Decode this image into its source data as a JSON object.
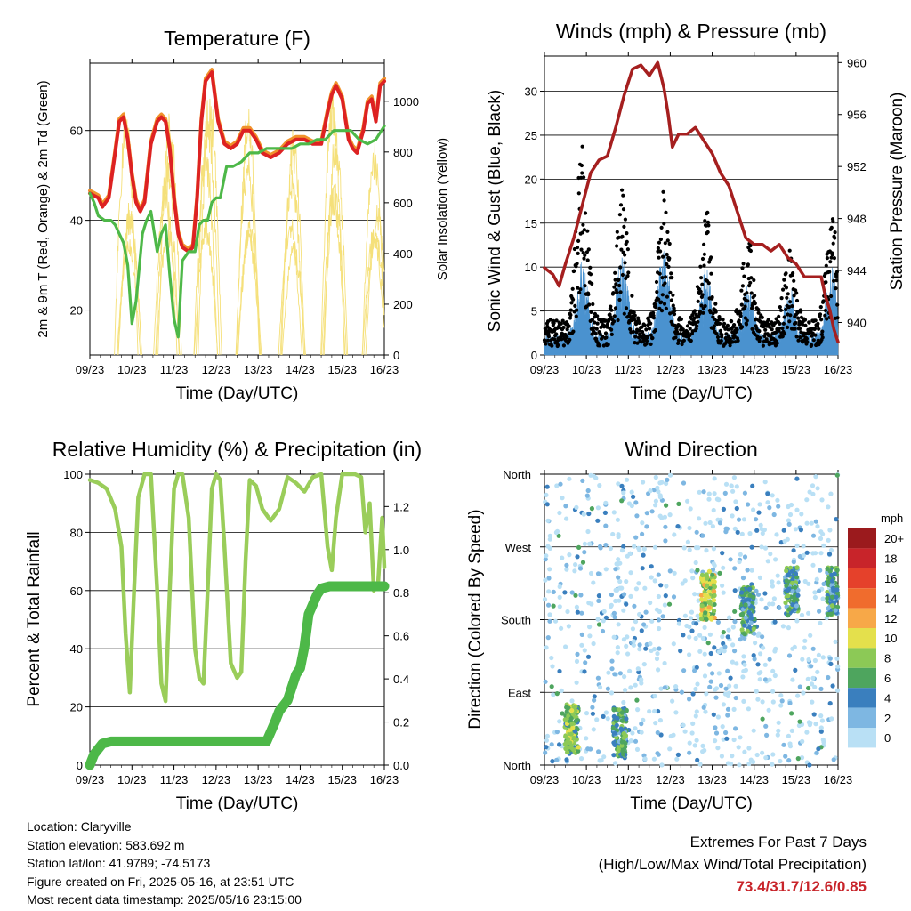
{
  "chart_data": [
    {
      "type": "line",
      "title": "Temperature (F)",
      "xlabel": "Time (Day/UTC)",
      "ylabel": "2m & 9m T (Red, Orange) & 2m Td (Green)",
      "ylabel_right": "Solar Insolation (Yellow)",
      "x_ticks": [
        "09/23",
        "10/23",
        "11/23",
        "12/23",
        "13/23",
        "14/23",
        "15/23",
        "16/23"
      ],
      "ylim": [
        10,
        75
      ],
      "y_ticks": [
        20,
        40,
        60
      ],
      "y2lim": [
        0,
        1150
      ],
      "y2_ticks": [
        0,
        200,
        400,
        600,
        800,
        1000
      ],
      "grid": true,
      "colors": {
        "temp_2m": "#dd2222",
        "temp_9m": "#f0922b",
        "dewpoint": "#4db848",
        "solar": "#f5e07a"
      },
      "series": [
        {
          "role": "temp_2m",
          "x_days": [
            0,
            0.1,
            0.2,
            0.3,
            0.45,
            0.6,
            0.7,
            0.8,
            0.9,
            1.0,
            1.1,
            1.2,
            1.3,
            1.45,
            1.6,
            1.7,
            1.8,
            1.9,
            2.0,
            2.1,
            2.2,
            2.35,
            2.45,
            2.55,
            2.65,
            2.75,
            2.9,
            3.05,
            3.2,
            3.35,
            3.5,
            3.65,
            3.8,
            3.95,
            4.1,
            4.3,
            4.5,
            4.7,
            4.9,
            5.1,
            5.3,
            5.5,
            5.65,
            5.75,
            5.85,
            6.0,
            6.15,
            6.25,
            6.35,
            6.5,
            6.6,
            6.7,
            6.8,
            6.9,
            7.0
          ],
          "values": [
            46,
            45.5,
            45,
            43,
            45,
            55,
            62,
            63,
            58,
            50,
            44,
            42,
            44,
            57,
            62,
            63,
            62,
            56,
            45,
            37,
            34,
            33,
            34,
            45,
            62,
            71,
            73,
            62,
            57,
            56,
            57,
            60,
            60,
            58,
            55,
            54,
            55,
            57,
            58,
            58,
            57,
            57,
            64,
            68,
            70,
            67,
            58,
            56,
            55,
            60,
            66,
            67,
            62,
            70,
            71
          ]
        },
        {
          "role": "dewpoint",
          "x_days": [
            0,
            0.1,
            0.2,
            0.35,
            0.5,
            0.6,
            0.8,
            0.9,
            1.0,
            1.1,
            1.25,
            1.35,
            1.45,
            1.6,
            1.7,
            1.8,
            1.9,
            2.0,
            2.1,
            2.2,
            2.35,
            2.5,
            2.6,
            2.7,
            2.8,
            2.9,
            3.0,
            3.1,
            3.25,
            3.4,
            3.6,
            3.8,
            4.0,
            4.2,
            4.4,
            4.6,
            4.8,
            5.0,
            5.2,
            5.4,
            5.6,
            5.8,
            6.0,
            6.2,
            6.4,
            6.6,
            6.8,
            7.0
          ],
          "values": [
            46,
            44,
            41,
            40,
            40,
            39,
            35,
            30,
            17,
            22,
            37,
            40,
            42,
            33,
            37,
            39,
            28,
            18,
            14,
            31,
            33,
            33,
            39,
            40,
            40,
            44,
            45,
            45,
            52,
            52,
            53,
            55,
            55,
            56,
            56,
            56,
            56,
            57,
            57,
            58,
            58,
            60,
            60,
            60,
            58,
            57,
            58,
            61
          ]
        },
        {
          "role": "solar_peaks",
          "x_days": [
            0.9,
            1.85,
            2.8,
            3.8,
            4.8,
            5.8,
            6.8
          ],
          "values": [
            1050,
            1080,
            1100,
            1000,
            1000,
            1100,
            1000
          ]
        }
      ]
    },
    {
      "type": "scatter",
      "title": "Winds (mph) & Pressure (mb)",
      "xlabel": "Time (Day/UTC)",
      "ylabel": "Sonic Wind & Gust (Blue, Black)",
      "ylabel_right": "Station Pressure (Maroon)",
      "x_ticks": [
        "09/23",
        "10/23",
        "11/23",
        "12/23",
        "13/23",
        "14/23",
        "15/23",
        "16/23"
      ],
      "ylim": [
        0,
        34
      ],
      "y_ticks": [
        0,
        5,
        10,
        15,
        20,
        25,
        30
      ],
      "y2lim": [
        937.5,
        960.5
      ],
      "y2_ticks": [
        940,
        944,
        948,
        952,
        956,
        960
      ],
      "grid": true,
      "colors": {
        "wind": "#4a92cf",
        "gust": "#000000",
        "pressure": "#a51f1f"
      },
      "series": [
        {
          "role": "pressure",
          "x_days": [
            0,
            0.2,
            0.35,
            0.5,
            0.7,
            0.9,
            1.1,
            1.3,
            1.5,
            1.7,
            1.9,
            2.1,
            2.3,
            2.5,
            2.7,
            2.85,
            2.95,
            3.05,
            3.2,
            3.4,
            3.6,
            3.8,
            4.0,
            4.2,
            4.4,
            4.6,
            4.8,
            5.0,
            5.2,
            5.4,
            5.6,
            5.8,
            6.0,
            6.2,
            6.35,
            6.5,
            6.6,
            6.7,
            6.8,
            6.9,
            7.0
          ],
          "values": [
            944.2,
            943.7,
            942.8,
            944.5,
            946.5,
            949,
            951.5,
            952.5,
            952.8,
            955,
            957.5,
            959.5,
            959.8,
            959,
            960,
            958,
            956,
            953.5,
            954.5,
            954.5,
            955,
            954,
            953,
            951.5,
            950.5,
            948.5,
            946.5,
            946,
            946,
            945.5,
            946,
            945,
            944.5,
            943.5,
            943.5,
            943.5,
            943.5,
            942,
            941,
            939.5,
            938.5
          ]
        },
        {
          "role": "wind",
          "note": "diurnal",
          "peak_x_days": [
            0.9,
            1.85,
            2.85,
            3.85,
            4.85,
            5.85,
            6.85
          ],
          "peak_values": [
            11,
            12,
            13,
            10,
            8,
            8,
            10
          ]
        },
        {
          "role": "gust",
          "note": "diurnal",
          "peak_x_days": [
            0.9,
            1.85,
            2.85,
            3.85,
            4.85,
            5.85,
            6.85
          ],
          "peak_values": [
            25,
            19,
            19,
            17,
            14,
            12,
            16
          ]
        }
      ]
    },
    {
      "type": "line",
      "title": "Relative Humidity (%) & Precipitation (in)",
      "xlabel": "Time (Day/UTC)",
      "ylabel": "Percent & Total Rainfall",
      "x_ticks": [
        "09/23",
        "10/23",
        "11/23",
        "12/23",
        "13/23",
        "14/23",
        "15/23",
        "16/23"
      ],
      "ylim": [
        0,
        100
      ],
      "y_ticks": [
        0,
        20,
        40,
        60,
        80,
        100
      ],
      "y2lim": [
        0,
        1.35
      ],
      "y2_ticks": [
        0.0,
        0.2,
        0.4,
        0.6,
        0.8,
        1.0,
        1.2
      ],
      "grid": true,
      "colors": {
        "rh": "#9acd5a",
        "precip": "#4db848"
      },
      "series": [
        {
          "role": "rh",
          "x_days": [
            0,
            0.2,
            0.4,
            0.6,
            0.75,
            0.85,
            0.95,
            1.05,
            1.15,
            1.3,
            1.45,
            1.6,
            1.7,
            1.8,
            1.9,
            2.0,
            2.1,
            2.2,
            2.35,
            2.5,
            2.6,
            2.7,
            2.8,
            2.9,
            3.0,
            3.1,
            3.2,
            3.35,
            3.5,
            3.6,
            3.7,
            3.8,
            3.95,
            4.1,
            4.3,
            4.5,
            4.7,
            4.9,
            5.1,
            5.3,
            5.5,
            5.65,
            5.75,
            5.85,
            6.0,
            6.15,
            6.3,
            6.45,
            6.55,
            6.65,
            6.75,
            6.85,
            6.95,
            7.0
          ],
          "values": [
            98,
            97,
            95,
            88,
            75,
            45,
            25,
            60,
            92,
            100,
            100,
            60,
            28,
            22,
            60,
            95,
            100,
            100,
            85,
            40,
            30,
            28,
            60,
            95,
            100,
            98,
            75,
            35,
            30,
            32,
            70,
            98,
            96,
            88,
            84,
            88,
            99,
            97,
            94,
            99,
            100,
            75,
            67,
            85,
            100,
            100,
            100,
            99,
            80,
            90,
            60,
            62,
            85,
            68
          ]
        },
        {
          "role": "precip_total",
          "x_days": [
            0,
            0.1,
            0.3,
            0.5,
            1.0,
            2.0,
            3.0,
            4.0,
            4.2,
            4.4,
            4.5,
            4.7,
            4.9,
            5.0,
            5.1,
            5.2,
            5.4,
            5.5,
            5.7,
            5.9,
            6.0,
            6.5,
            7.0
          ],
          "values": [
            0,
            0.05,
            0.1,
            0.11,
            0.11,
            0.11,
            0.11,
            0.11,
            0.11,
            0.2,
            0.25,
            0.3,
            0.42,
            0.45,
            0.55,
            0.7,
            0.79,
            0.82,
            0.83,
            0.83,
            0.83,
            0.83,
            0.83
          ]
        }
      ]
    },
    {
      "type": "scatter",
      "title": "Wind Direction",
      "xlabel": "Time (Day/UTC)",
      "ylabel": "Direction (Colored By Speed)",
      "x_ticks": [
        "09/23",
        "10/23",
        "11/23",
        "12/23",
        "13/23",
        "14/23",
        "15/23",
        "16/23"
      ],
      "y_ticks": [
        "North",
        "East",
        "South",
        "West",
        "North"
      ],
      "ylim": [
        0,
        360
      ],
      "grid": true,
      "colorbar": {
        "unit": "mph",
        "labels": [
          "20+",
          "18",
          "16",
          "14",
          "12",
          "10",
          "8",
          "6",
          "4",
          "2",
          "0"
        ],
        "colors": [
          "#9b1a1d",
          "#c8242a",
          "#e5412b",
          "#f06c2d",
          "#f7a848",
          "#e4e04c",
          "#8cc956",
          "#4ea55e",
          "#3a7fbe",
          "#7eb7e2",
          "#b9e0f5"
        ]
      },
      "clusters": [
        {
          "x_day": 0.65,
          "direction": 45,
          "speed": 10
        },
        {
          "x_day": 1.8,
          "direction": 40,
          "speed": 8
        },
        {
          "x_day": 3.9,
          "direction": 210,
          "speed": 12
        },
        {
          "x_day": 4.85,
          "direction": 190,
          "speed": 8
        },
        {
          "x_day": 5.9,
          "direction": 215,
          "speed": 8
        },
        {
          "x_day": 6.9,
          "direction": 215,
          "speed": 8
        }
      ]
    }
  ],
  "info": {
    "location": "Location: Claryville",
    "elevation": "Station elevation: 583.692 m",
    "latlon": "Station lat/lon: 41.9789; -74.5173",
    "created": "Figure created on Fri, 2025-05-16, at 23:51 UTC",
    "latest": "Most recent data timestamp: 2025/05/16 23:15:00"
  },
  "extremes": {
    "line1": "Extremes For Past 7 Days",
    "line2": "(High/Low/Max Wind/Total Precipitation)",
    "values": "73.4/31.7/12.6/0.85",
    "values_color": "#c8242a"
  }
}
